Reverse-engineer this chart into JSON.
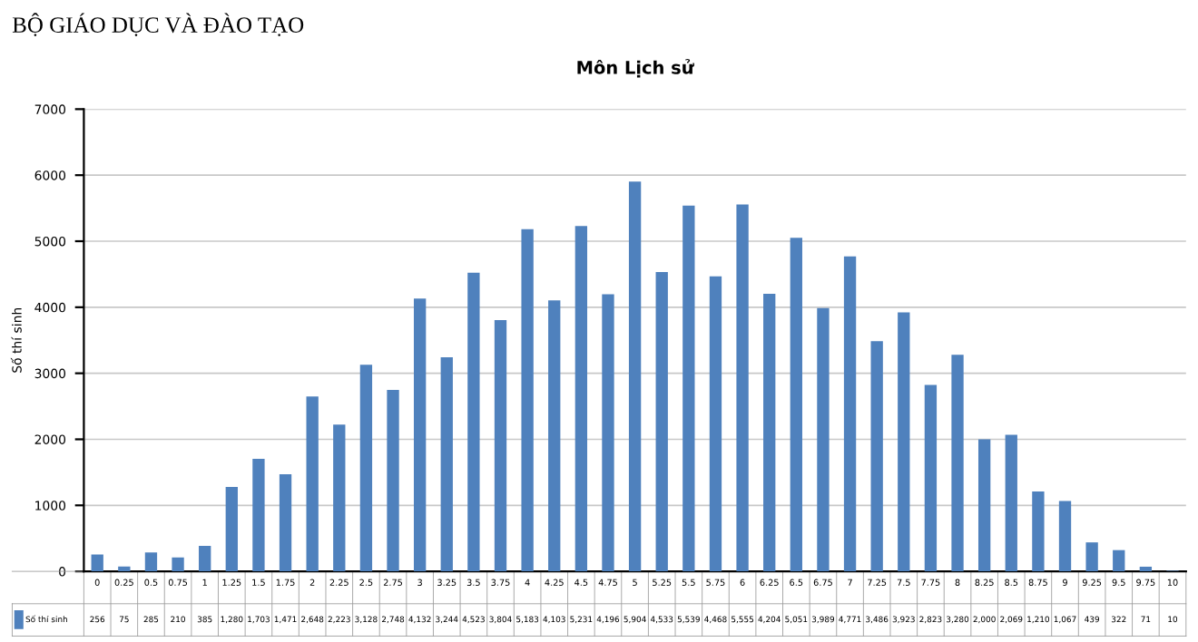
{
  "chart_data": {
    "type": "bar",
    "title": "Môn Lịch sử",
    "ylabel": "Số thí sinh",
    "annotations": [
      "BỘ GIÁO DỤC VÀ ĐÀO TẠO"
    ],
    "categories": [
      "0",
      "0.25",
      "0.5",
      "0.75",
      "1",
      "1.25",
      "1.5",
      "1.75",
      "2",
      "2.25",
      "2.5",
      "2.75",
      "3",
      "3.25",
      "3.5",
      "3.75",
      "4",
      "4.25",
      "4.5",
      "4.75",
      "5",
      "5.25",
      "5.5",
      "5.75",
      "6",
      "6.25",
      "6.5",
      "6.75",
      "7",
      "7.25",
      "7.5",
      "7.75",
      "8",
      "8.25",
      "8.5",
      "8.75",
      "9",
      "9.25",
      "9.5",
      "9.75",
      "10"
    ],
    "series": [
      {
        "name": "Số thí sinh",
        "color": "#4f81bd",
        "values": [
          256,
          75,
          285,
          210,
          385,
          1280,
          1703,
          1471,
          2648,
          2223,
          3128,
          2748,
          4132,
          3244,
          4523,
          3804,
          5183,
          4103,
          5231,
          4196,
          5904,
          4533,
          5539,
          4468,
          5555,
          4204,
          5051,
          3989,
          4771,
          3486,
          3923,
          2823,
          3280,
          2000,
          2069,
          1210,
          1067,
          439,
          322,
          71,
          10
        ]
      }
    ],
    "value_labels": [
      "256",
      "75",
      "285",
      "210",
      "385",
      "1,280",
      "1,703",
      "1,471",
      "2,648",
      "2,223",
      "3,128",
      "2,748",
      "4,132",
      "3,244",
      "4,523",
      "3,804",
      "5,183",
      "4,103",
      "5,231",
      "4,196",
      "5,904",
      "4,533",
      "5,539",
      "4,468",
      "5,555",
      "4,204",
      "5,051",
      "3,989",
      "4,771",
      "3,486",
      "3,923",
      "2,823",
      "3,280",
      "2,000",
      "2,069",
      "1,210",
      "1,067",
      "439",
      "322",
      "71",
      "10"
    ],
    "ylim": [
      0,
      7000
    ],
    "yticks": [
      0,
      1000,
      2000,
      3000,
      4000,
      5000,
      6000,
      7000
    ],
    "grid": "y"
  }
}
